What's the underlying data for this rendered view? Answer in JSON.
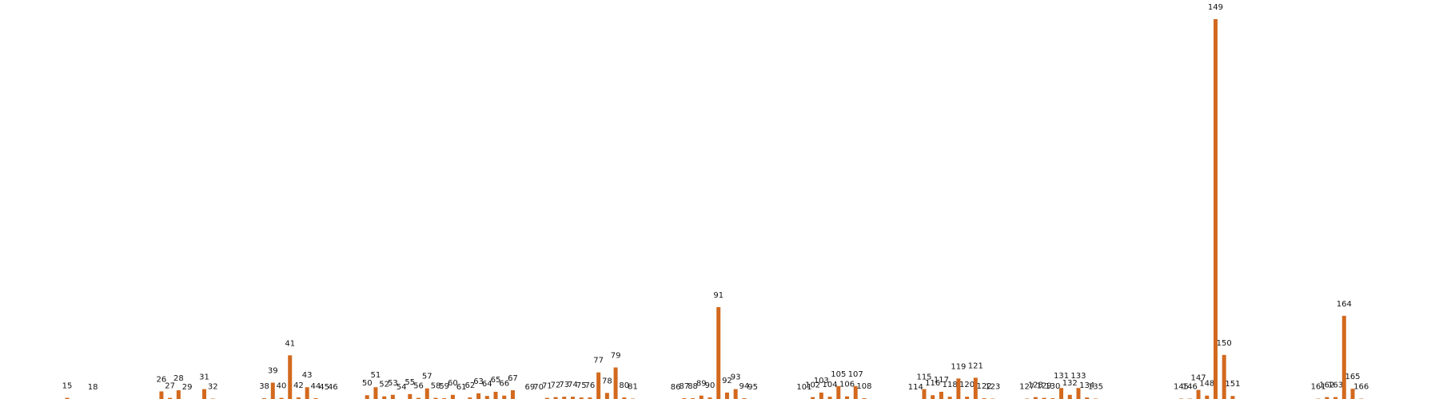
{
  "chart_data": {
    "type": "bar",
    "bar_color": "#D2691E",
    "ylim": [
      0,
      100
    ],
    "categories": [
      "15",
      "18",
      "26",
      "27",
      "28",
      "29",
      "31",
      "32",
      "38",
      "39",
      "40",
      "41",
      "42",
      "43",
      "44",
      "45",
      "46",
      "50",
      "51",
      "52",
      "53",
      "54",
      "55",
      "56",
      "57",
      "58",
      "59",
      "60",
      "61",
      "62",
      "63",
      "64",
      "65",
      "66",
      "67",
      "69",
      "70",
      "71",
      "72",
      "73",
      "74",
      "75",
      "76",
      "77",
      "78",
      "79",
      "80",
      "81",
      "86",
      "87",
      "88",
      "89",
      "90",
      "91",
      "92",
      "93",
      "94",
      "95",
      "101",
      "102",
      "103",
      "104",
      "105",
      "106",
      "107",
      "108",
      "114",
      "115",
      "116",
      "117",
      "118",
      "119",
      "120",
      "121",
      "122",
      "123",
      "127",
      "128",
      "129",
      "130",
      "131",
      "132",
      "133",
      "134",
      "135",
      "145",
      "146",
      "147",
      "148",
      "149",
      "150",
      "151",
      "161",
      "162",
      "163",
      "164",
      "165",
      "166"
    ],
    "values": [
      0.3,
      0.0,
      2.0,
      0.3,
      2.3,
      0.0,
      2.6,
      0.1,
      0.2,
      4.3,
      0.3,
      11.5,
      0.4,
      3.1,
      0.2,
      0.0,
      0.0,
      1.0,
      3.1,
      0.7,
      1.1,
      0.0,
      1.3,
      0.3,
      2.8,
      0.3,
      0.2,
      1.1,
      0.0,
      0.4,
      1.5,
      0.8,
      1.9,
      0.9,
      2.3,
      0.0,
      0.0,
      0.3,
      0.5,
      0.6,
      0.6,
      0.4,
      0.4,
      7.0,
      1.6,
      8.3,
      0.4,
      0.1,
      0.0,
      0.2,
      0.2,
      0.9,
      0.4,
      24.2,
      1.7,
      2.6,
      0.2,
      0.0,
      0.0,
      0.5,
      1.7,
      0.6,
      3.4,
      0.7,
      3.4,
      0.2,
      0.0,
      2.6,
      1.0,
      1.9,
      0.6,
      5.4,
      0.6,
      5.6,
      0.2,
      0.1,
      0.1,
      0.5,
      0.3,
      0.2,
      2.9,
      1.1,
      2.9,
      0.4,
      0.1,
      0.1,
      0.1,
      2.4,
      0.9,
      100.0,
      11.6,
      0.8,
      0.1,
      0.5,
      0.5,
      21.9,
      2.7,
      0.1
    ]
  }
}
